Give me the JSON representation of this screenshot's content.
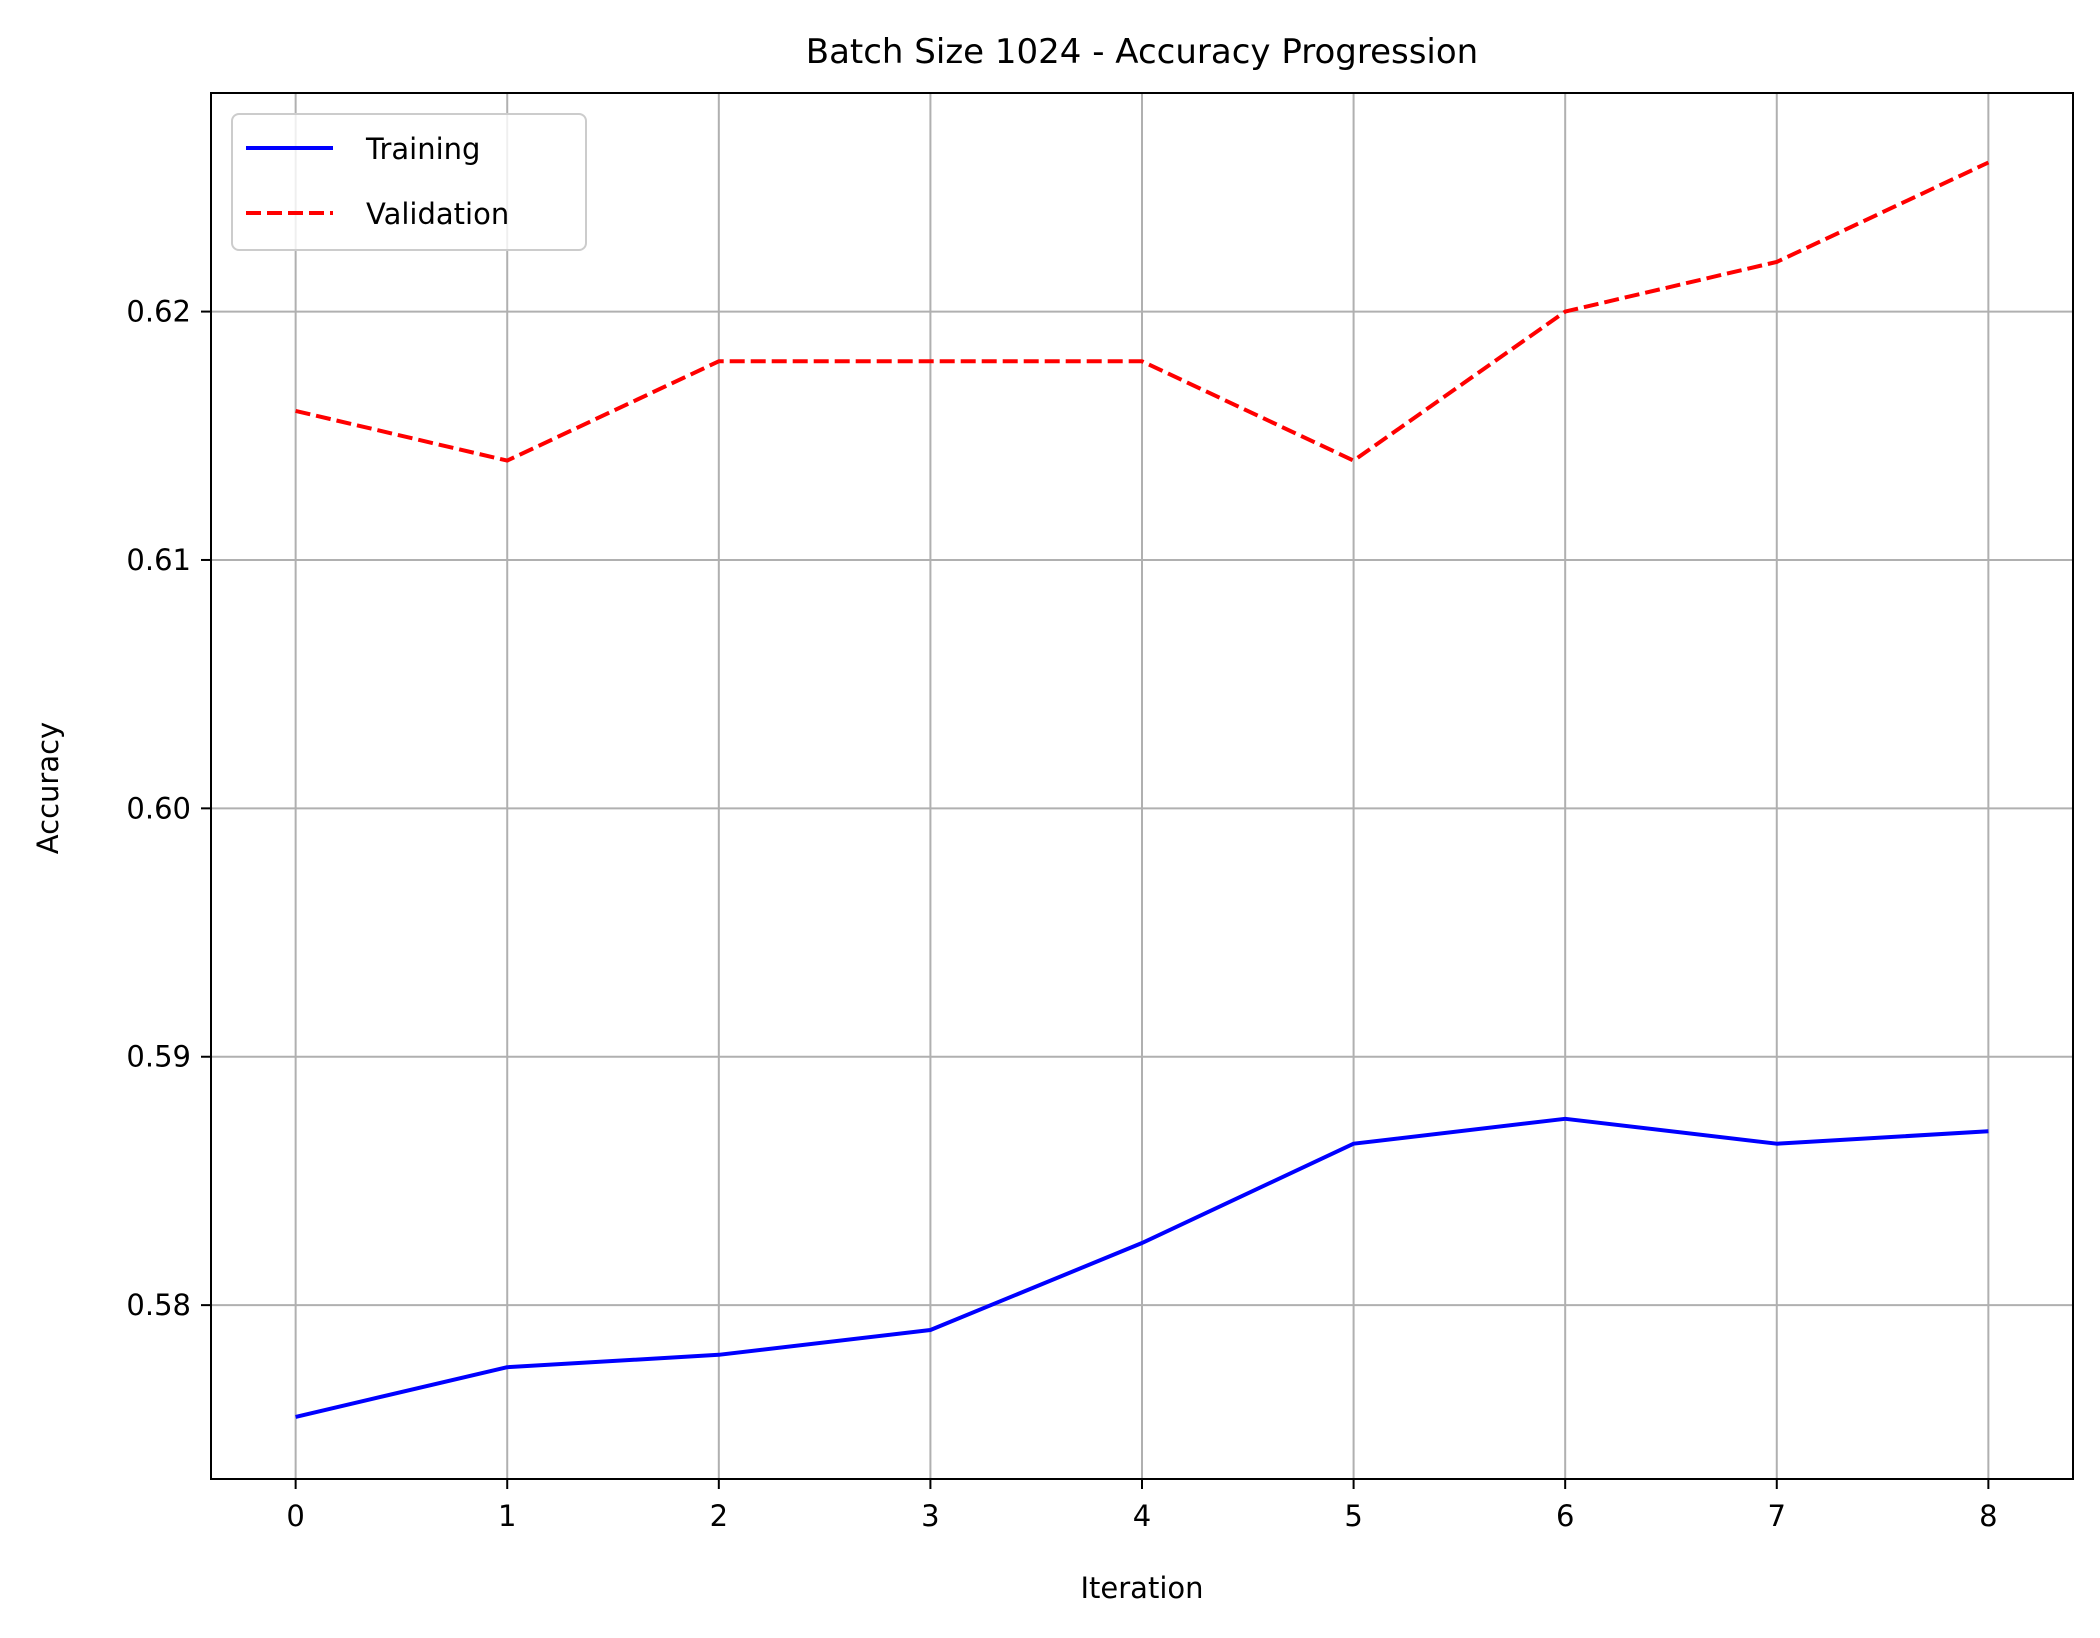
{
  "chart_data": {
    "type": "line",
    "title": "Batch Size 1024 - Accuracy Progression",
    "xlabel": "Iteration",
    "ylabel": "Accuracy",
    "x": [
      0,
      1,
      2,
      3,
      4,
      5,
      6,
      7,
      8
    ],
    "xlim": [
      -0.4,
      8.4
    ],
    "ylim": [
      0.573,
      0.6288
    ],
    "x_ticks": [
      0,
      1,
      2,
      3,
      4,
      5,
      6,
      7,
      8
    ],
    "y_ticks": [
      0.58,
      0.59,
      0.6,
      0.61,
      0.62
    ],
    "y_tick_labels": [
      "0.58",
      "0.59",
      "0.60",
      "0.61",
      "0.62"
    ],
    "grid": true,
    "legend_position": "top-left",
    "series": [
      {
        "name": "Training",
        "color": "#0000ff",
        "linestyle": "solid",
        "values": [
          0.5755,
          0.5775,
          0.578,
          0.579,
          0.5825,
          0.5865,
          0.5875,
          0.5865,
          0.587
        ]
      },
      {
        "name": "Validation",
        "color": "#ff0000",
        "linestyle": "dashed",
        "values": [
          0.616,
          0.614,
          0.618,
          0.618,
          0.618,
          0.614,
          0.62,
          0.622,
          0.626
        ]
      }
    ]
  }
}
